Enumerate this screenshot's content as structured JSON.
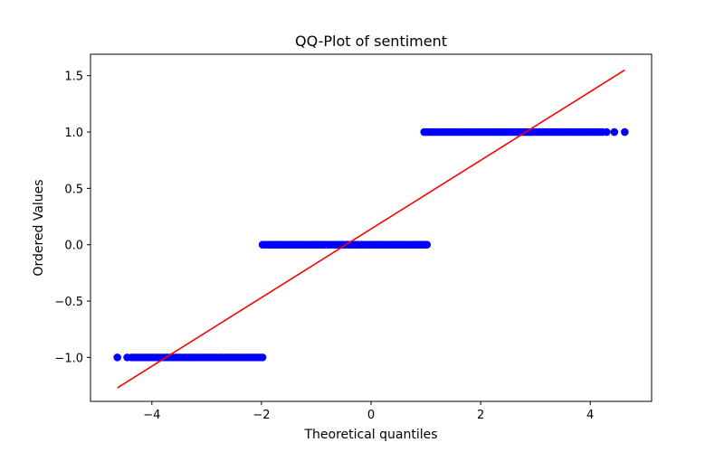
{
  "chart_data": {
    "type": "scatter",
    "title": "QQ-Plot of sentiment",
    "xlabel": "Theoretical quantiles",
    "ylabel": "Ordered Values",
    "xlim": [
      -5.12,
      5.12
    ],
    "ylim": [
      -1.39,
      1.69
    ],
    "x_ticks": [
      -4,
      -2,
      0,
      2,
      4
    ],
    "x_tick_labels": [
      "−4",
      "−2",
      "0",
      "2",
      "4"
    ],
    "y_ticks": [
      -1.0,
      -0.5,
      0.0,
      0.5,
      1.0,
      1.5
    ],
    "y_tick_labels": [
      "−1.0",
      "−0.5",
      "0.0",
      "0.5",
      "1.0",
      "1.5"
    ],
    "grid": false,
    "series": [
      {
        "kind": "points",
        "color": "#0000ff",
        "groups": [
          {
            "y": -1.0,
            "x": [
              -4.63,
              -4.45,
              -4.37,
              -4.32,
              -4.27,
              -4.22,
              -4.17,
              -4.12,
              -4.07,
              -4.02,
              -3.97,
              -3.92,
              -3.87,
              -3.82,
              -3.77,
              -3.72,
              -3.67,
              -3.62,
              -3.57,
              -3.52,
              -3.47,
              -3.42,
              -3.37,
              -3.32,
              -3.27,
              -3.22,
              -3.17,
              -3.12,
              -3.07,
              -3.02,
              -2.97,
              -2.92,
              -2.87,
              -2.82,
              -2.77,
              -2.72,
              -2.67,
              -2.62,
              -2.57,
              -2.52,
              -2.47,
              -2.42,
              -2.37,
              -2.32,
              -2.27,
              -2.22,
              -2.17,
              -2.12,
              -2.07,
              -2.02,
              -1.98
            ]
          },
          {
            "y": 0.0,
            "x": [
              -1.98,
              -1.93,
              -1.88,
              -1.83,
              -1.78,
              -1.73,
              -1.68,
              -1.63,
              -1.58,
              -1.53,
              -1.48,
              -1.43,
              -1.38,
              -1.33,
              -1.28,
              -1.23,
              -1.18,
              -1.13,
              -1.08,
              -1.03,
              -0.98,
              -0.93,
              -0.88,
              -0.83,
              -0.78,
              -0.73,
              -0.68,
              -0.63,
              -0.58,
              -0.53,
              -0.48,
              -0.43,
              -0.38,
              -0.33,
              -0.28,
              -0.23,
              -0.18,
              -0.13,
              -0.08,
              -0.03,
              0.02,
              0.07,
              0.12,
              0.17,
              0.22,
              0.27,
              0.32,
              0.37,
              0.42,
              0.47,
              0.52,
              0.57,
              0.62,
              0.67,
              0.72,
              0.77,
              0.82,
              0.87,
              0.92,
              0.97,
              1.02
            ]
          },
          {
            "y": 1.0,
            "x": [
              0.97,
              1.02,
              1.07,
              1.12,
              1.17,
              1.22,
              1.27,
              1.32,
              1.37,
              1.42,
              1.47,
              1.52,
              1.57,
              1.62,
              1.67,
              1.72,
              1.77,
              1.82,
              1.87,
              1.92,
              1.97,
              2.02,
              2.07,
              2.12,
              2.17,
              2.22,
              2.27,
              2.32,
              2.37,
              2.42,
              2.47,
              2.52,
              2.57,
              2.62,
              2.67,
              2.72,
              2.77,
              2.82,
              2.87,
              2.92,
              2.97,
              3.02,
              3.07,
              3.12,
              3.17,
              3.22,
              3.27,
              3.32,
              3.37,
              3.42,
              3.47,
              3.52,
              3.57,
              3.62,
              3.67,
              3.72,
              3.77,
              3.82,
              3.87,
              3.92,
              3.97,
              4.02,
              4.07,
              4.12,
              4.17,
              4.22,
              4.3,
              4.44,
              4.63
            ]
          }
        ]
      },
      {
        "kind": "line",
        "color": "#ff0000",
        "x": [
          -4.63,
          4.63
        ],
        "y": [
          -1.27,
          1.55
        ]
      }
    ]
  }
}
